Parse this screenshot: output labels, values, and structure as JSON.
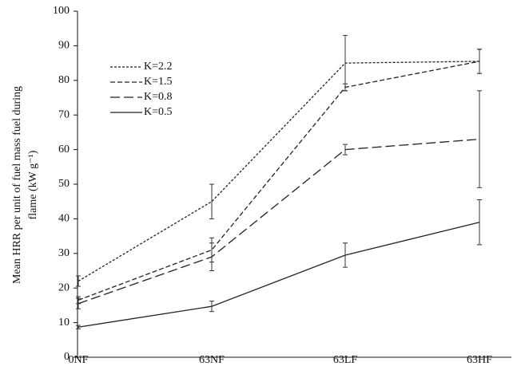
{
  "chart_data": {
    "type": "line",
    "ylabel_lines": [
      "Mean HRR per unit of fuel mass fuel during",
      "flame (kW g⁻¹)"
    ],
    "categories": [
      "0NF",
      "63NF",
      "63LF",
      "63HF"
    ],
    "series": [
      {
        "name": "K=2.2",
        "color": "#222222",
        "dash": "3,2",
        "values": [
          22,
          45,
          85,
          85.5
        ],
        "errors": [
          1.5,
          5,
          8,
          3.5
        ]
      },
      {
        "name": "K=1.5",
        "color": "#222222",
        "dash": "6,3",
        "values": [
          16.5,
          31,
          78,
          85.5
        ],
        "errors": [
          1,
          3.5,
          1,
          3.5
        ]
      },
      {
        "name": "K=0.8",
        "color": "#222222",
        "dash": "12,5",
        "values": [
          15.5,
          29,
          60,
          63
        ],
        "errors": [
          1.5,
          4,
          1.5,
          14
        ]
      },
      {
        "name": "K=0.5",
        "color": "#222222",
        "dash": "none",
        "values": [
          8.7,
          14.7,
          29.5,
          39
        ],
        "errors": [
          0.5,
          1.5,
          3.5,
          6.5
        ]
      }
    ],
    "ylim": [
      0,
      100
    ],
    "yticks": [
      0,
      10,
      20,
      30,
      40,
      50,
      60,
      70,
      80,
      90,
      100
    ],
    "grid": false,
    "legend": "upper-left"
  }
}
